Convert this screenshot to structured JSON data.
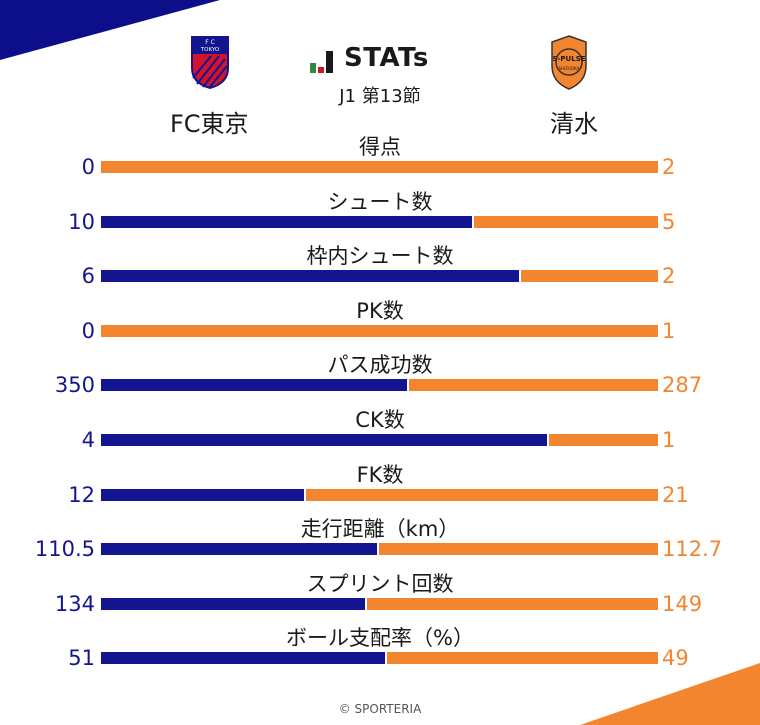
{
  "colors": {
    "home": "#13148f",
    "away": "#f4852f",
    "accent_dark": "#0d0f8a"
  },
  "header": {
    "brand": "STATs",
    "round": "J1 第13節",
    "home_team": "FC東京",
    "away_team": "清水",
    "home_crest_text": "F C TOKYO",
    "away_crest_text": "S-PULSE"
  },
  "footer": "© SPORTERIA",
  "chart_data": {
    "type": "bar",
    "orientation": "horizontal-stacked-comparison",
    "categories": [
      "得点",
      "シュート数",
      "枠内シュート数",
      "PK数",
      "パス成功数",
      "CK数",
      "FK数",
      "走行距離（km）",
      "スプリント回数",
      "ボール支配率（%）"
    ],
    "series": [
      {
        "name": "FC東京",
        "values": [
          0,
          10,
          6,
          0,
          350,
          4,
          12,
          110.5,
          134,
          51
        ]
      },
      {
        "name": "清水",
        "values": [
          2,
          5,
          2,
          1,
          287,
          1,
          21,
          112.7,
          149,
          49
        ]
      }
    ],
    "labels_home": [
      "0",
      "10",
      "6",
      "0",
      "350",
      "4",
      "12",
      "110.5",
      "134",
      "51"
    ],
    "labels_away": [
      "2",
      "5",
      "2",
      "1",
      "287",
      "1",
      "21",
      "112.7",
      "149",
      "49"
    ]
  }
}
